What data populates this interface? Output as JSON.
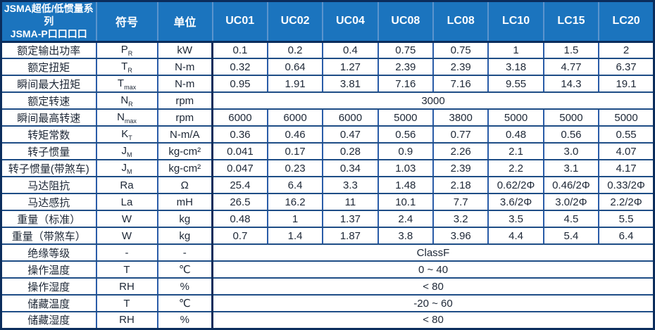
{
  "table": {
    "title_line1": "JSMA超低/低惯量系列",
    "title_line2": "JSMA-P口口口口",
    "col_symbol": "符号",
    "col_unit": "单位",
    "models": [
      "UC01",
      "UC02",
      "UC04",
      "UC08",
      "LC08",
      "LC10",
      "LC15",
      "LC20"
    ],
    "rows": [
      {
        "label": "额定输出功率",
        "sym": "P",
        "sub": "R",
        "unit": "kW",
        "values": [
          "0.1",
          "0.2",
          "0.4",
          "0.75",
          "0.75",
          "1",
          "1.5",
          "2"
        ]
      },
      {
        "label": "额定扭矩",
        "sym": "T",
        "sub": "R",
        "unit": "N-m",
        "values": [
          "0.32",
          "0.64",
          "1.27",
          "2.39",
          "2.39",
          "3.18",
          "4.77",
          "6.37"
        ]
      },
      {
        "label": "瞬间最大扭矩",
        "sym": "T",
        "sub": "max",
        "unit": "N-m",
        "values": [
          "0.95",
          "1.91",
          "3.81",
          "7.16",
          "7.16",
          "9.55",
          "14.3",
          "19.1"
        ]
      },
      {
        "label": "额定转速",
        "sym": "N",
        "sub": "R",
        "unit": "rpm",
        "merged": "3000"
      },
      {
        "label": "瞬间最高转速",
        "sym": "N",
        "sub": "max",
        "unit": "rpm",
        "values": [
          "6000",
          "6000",
          "6000",
          "5000",
          "3800",
          "5000",
          "5000",
          "5000"
        ]
      },
      {
        "label": "转矩常数",
        "sym": "K",
        "sub": "T",
        "unit": "N-m/A",
        "values": [
          "0.36",
          "0.46",
          "0.47",
          "0.56",
          "0.77",
          "0.48",
          "0.56",
          "0.55"
        ]
      },
      {
        "label": "转子惯量",
        "sym": "J",
        "sub": "M",
        "unit": "kg-cm²",
        "values": [
          "0.041",
          "0.17",
          "0.28",
          "0.9",
          "2.26",
          "2.1",
          "3.0",
          "4.07"
        ]
      },
      {
        "label": "转子惯量(带煞车)",
        "sym": "J",
        "sub": "M",
        "unit": "kg-cm²",
        "values": [
          "0.047",
          "0.23",
          "0.34",
          "1.03",
          "2.39",
          "2.2",
          "3.1",
          "4.17"
        ]
      },
      {
        "label": "马达阻抗",
        "sym": "Ra",
        "sub": "",
        "unit": "Ω",
        "values": [
          "25.4",
          "6.4",
          "3.3",
          "1.48",
          "2.18",
          "0.62/2Φ",
          "0.46/2Φ",
          "0.33/2Φ"
        ]
      },
      {
        "label": "马达感抗",
        "sym": "La",
        "sub": "",
        "unit": "mH",
        "values": [
          "26.5",
          "16.2",
          "11",
          "10.1",
          "7.7",
          "3.6/2Φ",
          "3.0/2Φ",
          "2.2/2Φ"
        ]
      },
      {
        "label": "重量（标准）",
        "sym": "W",
        "sub": "",
        "unit": "kg",
        "values": [
          "0.48",
          "1",
          "1.37",
          "2.4",
          "3.2",
          "3.5",
          "4.5",
          "5.5"
        ]
      },
      {
        "label": "重量（带煞车）",
        "sym": "W",
        "sub": "",
        "unit": "kg",
        "values": [
          "0.7",
          "1.4",
          "1.87",
          "3.8",
          "3.96",
          "4.4",
          "5.4",
          "6.4"
        ]
      },
      {
        "label": "绝缘等级",
        "sym": "-",
        "sub": "",
        "unit": "-",
        "merged": "ClassF"
      },
      {
        "label": "操作温度",
        "sym": "T",
        "sub": "",
        "unit": "℃",
        "merged": "0 ~ 40"
      },
      {
        "label": "操作湿度",
        "sym": "RH",
        "sub": "",
        "unit": "%",
        "merged": "< 80"
      },
      {
        "label": "储藏温度",
        "sym": "T",
        "sub": "",
        "unit": "℃",
        "merged": "-20 ~ 60"
      },
      {
        "label": "储藏湿度",
        "sym": "RH",
        "sub": "",
        "unit": "%",
        "merged": "< 80"
      }
    ],
    "colors": {
      "header_bg": "#1b74be",
      "header_separator": "#5b94cd",
      "outer_border": "#0b2d5c",
      "row_border": "#1e4d86",
      "column_border": "#2a5ca8",
      "body_text": "#1d2736",
      "header_text": "#ffffff"
    }
  }
}
